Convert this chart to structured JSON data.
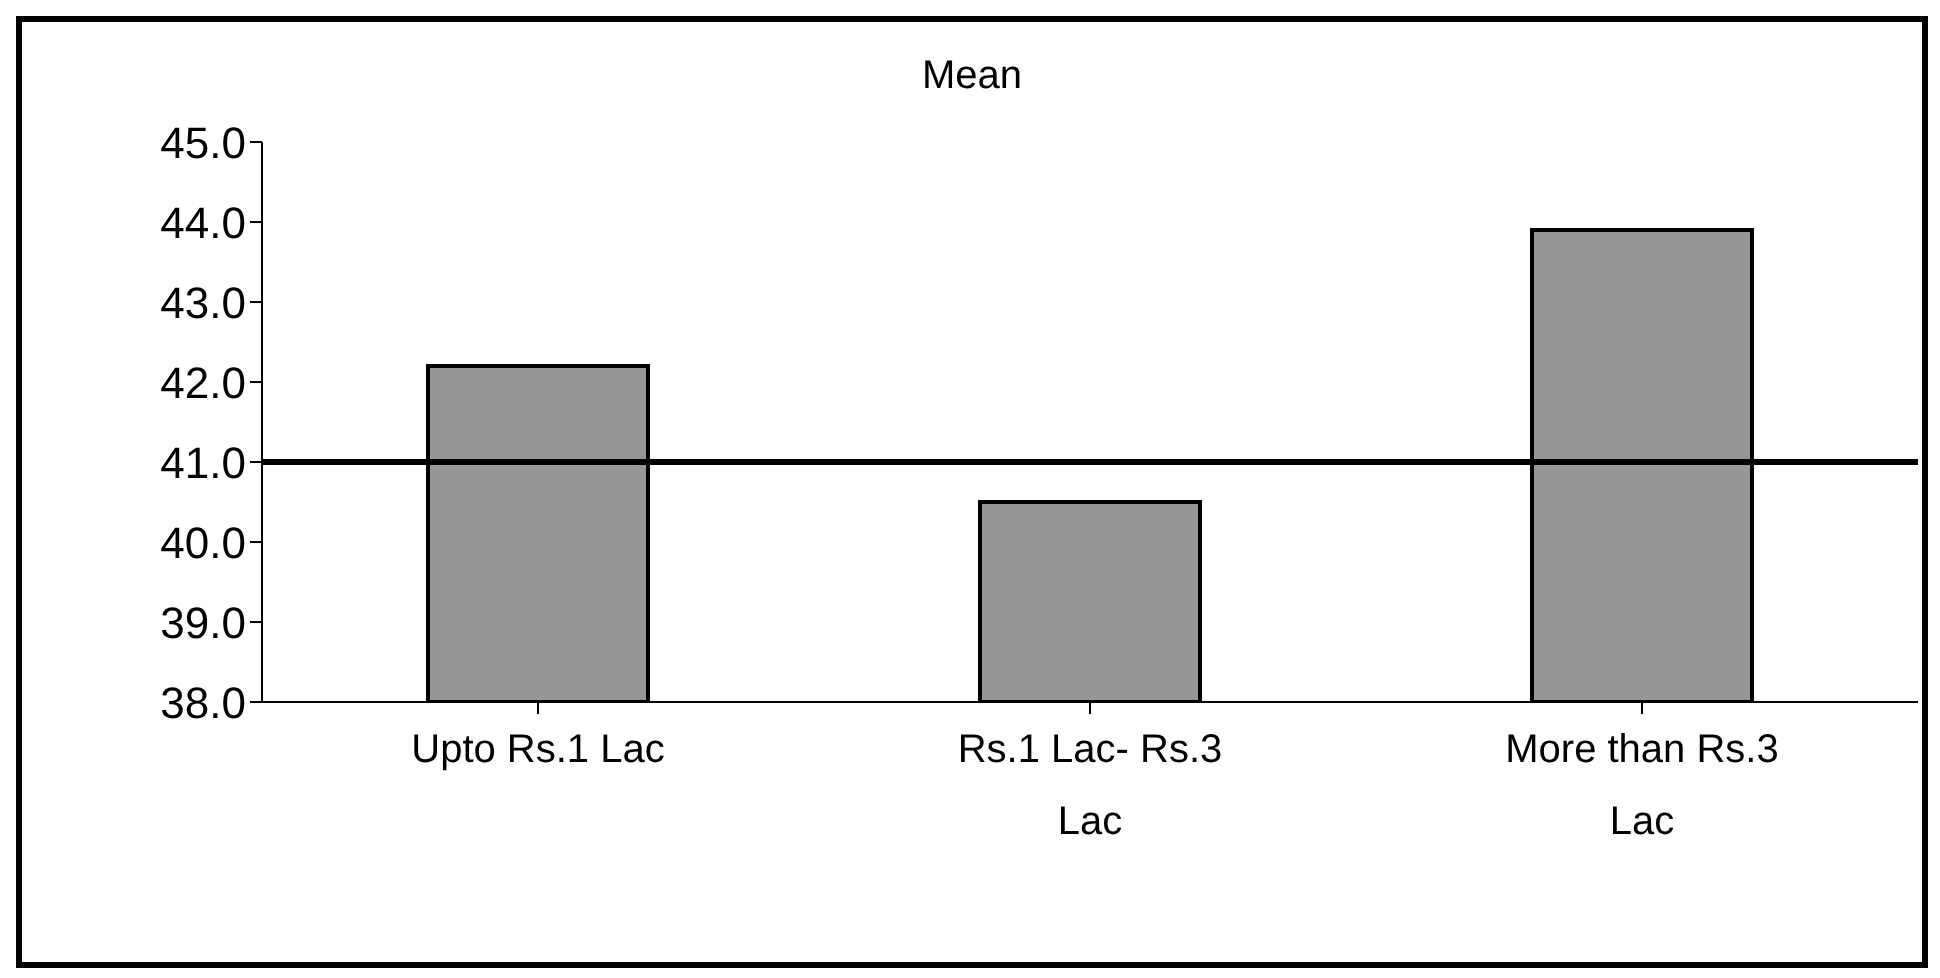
{
  "chart_data": {
    "type": "bar",
    "title": "Mean",
    "categories": [
      "Upto Rs.1 Lac",
      "Rs.1 Lac- Rs.3 Lac",
      "More than Rs.3 Lac"
    ],
    "values": [
      42.2,
      40.5,
      43.9
    ],
    "color": "#969696",
    "ylim": [
      38,
      45
    ],
    "yticks": [
      {
        "value": 38,
        "label": "38.0"
      },
      {
        "value": 39,
        "label": "39.0"
      },
      {
        "value": 40,
        "label": "40.0"
      },
      {
        "value": 41,
        "label": "41.0"
      },
      {
        "value": 42,
        "label": "42.0"
      },
      {
        "value": 43,
        "label": "43.0"
      },
      {
        "value": 44,
        "label": "44.0"
      },
      {
        "value": 45,
        "label": "45.0"
      }
    ],
    "ref_lines": [
      {
        "axis": "y",
        "value": 41,
        "color": "#000000"
      }
    ],
    "grid": false,
    "legend": false
  }
}
